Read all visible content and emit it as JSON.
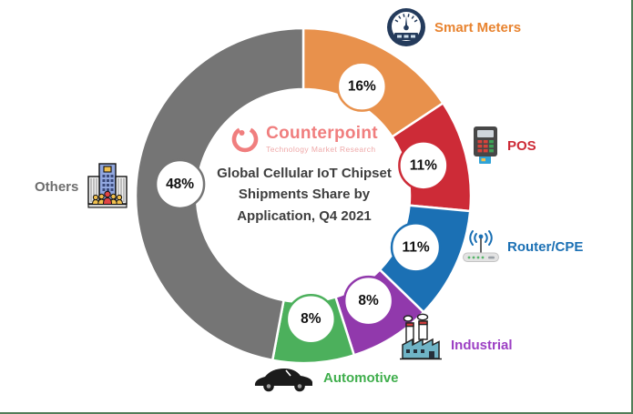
{
  "frame": {
    "border_color": "#527D58"
  },
  "logo": {
    "name": "Counterpoint",
    "subtitle": "Technology Market Research",
    "name_color": "#F07E7E",
    "subtitle_color": "#EFA9A9"
  },
  "title": {
    "line1": "Global Cellular IoT Chipset",
    "line2": "Shipments Share by",
    "line3": "Application, Q4 2021",
    "color": "#3E3E3E"
  },
  "chart_data": {
    "type": "pie",
    "donut": true,
    "title": "Global Cellular IoT Chipset Shipments Share by Application, Q4 2021",
    "start_angle_deg": 0,
    "direction": "clockwise",
    "segments": [
      {
        "id": "smart-meters",
        "label": "Smart Meters",
        "value": 16,
        "display": "16%",
        "color": "#E8914C"
      },
      {
        "id": "pos",
        "label": "POS",
        "value": 11,
        "display": "11%",
        "color": "#CD2B37"
      },
      {
        "id": "router-cpe",
        "label": "Router/CPE",
        "value": 11,
        "display": "11%",
        "color": "#1B70B4"
      },
      {
        "id": "industrial",
        "label": "Industrial",
        "value": 8,
        "display": "8%",
        "color": "#9139AC"
      },
      {
        "id": "automotive",
        "label": "Automotive",
        "value": 8,
        "display": "8%",
        "color": "#4CB05C"
      },
      {
        "id": "others",
        "label": "Others",
        "value": 48,
        "display": "48%",
        "color": "#757575"
      }
    ]
  },
  "legend": [
    {
      "id": "smart-meters",
      "label": "Smart Meters",
      "color": "#E8832F"
    },
    {
      "id": "pos",
      "label": "POS",
      "color": "#CD2B37"
    },
    {
      "id": "router-cpe",
      "label": "Router/CPE",
      "color": "#1B70B4"
    },
    {
      "id": "industrial",
      "label": "Industrial",
      "color": "#9C3FC4"
    },
    {
      "id": "automotive",
      "label": "Automotive",
      "color": "#3FAE4C"
    },
    {
      "id": "others",
      "label": "Others",
      "color": "#6E6E6E"
    }
  ]
}
